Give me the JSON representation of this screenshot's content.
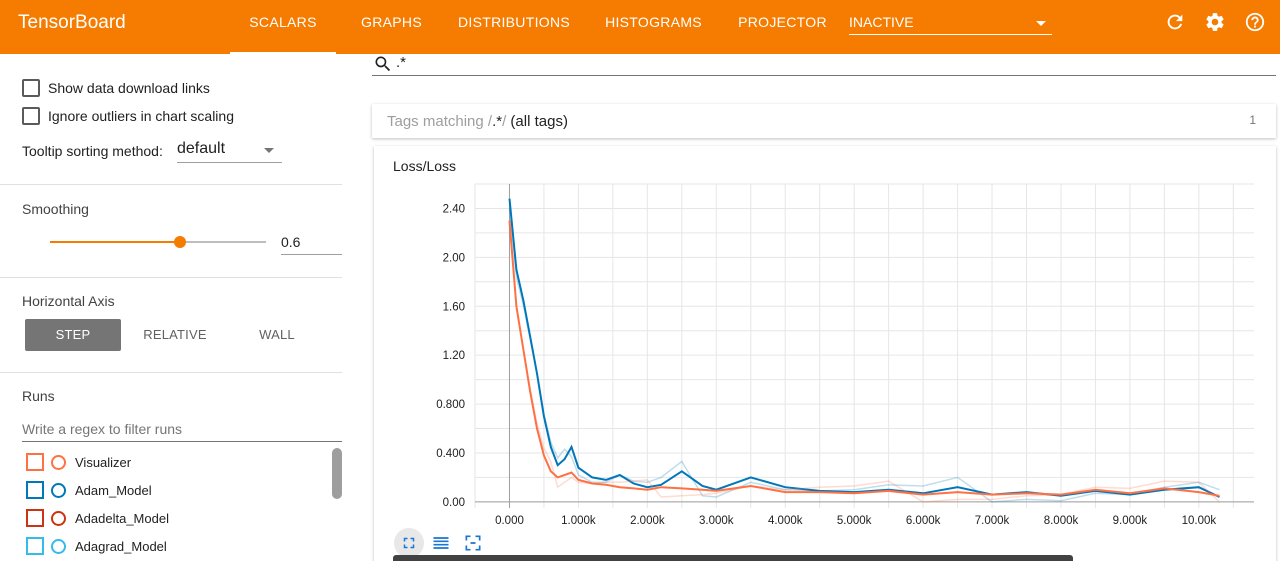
{
  "header": {
    "brand": "TensorBoard",
    "tabs": [
      {
        "label": "SCALARS",
        "active": true
      },
      {
        "label": "GRAPHS",
        "active": false
      },
      {
        "label": "DISTRIBUTIONS",
        "active": false
      },
      {
        "label": "HISTOGRAMS",
        "active": false
      },
      {
        "label": "PROJECTOR",
        "active": false
      }
    ],
    "inactive_select": "INACTIVE",
    "icons": [
      "refresh-icon",
      "gear-icon",
      "help-icon"
    ]
  },
  "sidebar": {
    "show_download_links": "Show data download links",
    "ignore_outliers": "Ignore outliers in chart scaling",
    "tooltip_label": "Tooltip sorting method:",
    "tooltip_value": "default",
    "smoothing_label": "Smoothing",
    "smoothing_value": "0.6",
    "smoothing_fraction": 0.6,
    "horizontal_axis_label": "Horizontal Axis",
    "axis_buttons": [
      {
        "label": "STEP",
        "active": true
      },
      {
        "label": "RELATIVE",
        "active": false
      },
      {
        "label": "WALL",
        "active": false
      }
    ],
    "runs_label": "Runs",
    "runs_filter_placeholder": "Write a regex to filter runs",
    "runs": [
      {
        "name": "Visualizer",
        "color": "#ff7043"
      },
      {
        "name": "Adam_Model",
        "color": "#0077bb"
      },
      {
        "name": "Adadelta_Model",
        "color": "#cc3311"
      },
      {
        "name": "Adagrad_Model",
        "color": "#33bbee"
      }
    ]
  },
  "main": {
    "search_text": ".*",
    "tags_matching_prefix": "Tags matching /",
    "tags_matching_regex": ".*",
    "tags_matching_suffix": "/",
    "tags_matching_all": "(all tags)",
    "tags_count": "1"
  },
  "chart_data": {
    "type": "line",
    "title": "Loss/Loss",
    "xlabel": "",
    "ylabel": "",
    "xlim": [
      -500,
      10800
    ],
    "ylim": [
      -0.05,
      2.6
    ],
    "x_ticks": [
      "0.000",
      "1.000k",
      "2.000k",
      "3.000k",
      "4.000k",
      "5.000k",
      "6.000k",
      "7.000k",
      "8.000k",
      "9.000k",
      "10.00k"
    ],
    "y_ticks": [
      "0.00",
      "0.400",
      "0.800",
      "1.20",
      "1.60",
      "2.00",
      "2.40"
    ],
    "grid": true,
    "series": [
      {
        "color": "#0077bb",
        "x": [
          0,
          100,
          200,
          300,
          400,
          500,
          600,
          700,
          800,
          900,
          1000,
          1200,
          1400,
          1600,
          1800,
          2000,
          2200,
          2500,
          2800,
          3000,
          3500,
          4000,
          4500,
          5000,
          5500,
          6000,
          6500,
          7000,
          7500,
          8000,
          8500,
          9000,
          9500,
          10000,
          10300
        ],
        "y": [
          2.48,
          1.9,
          1.65,
          1.35,
          1.05,
          0.7,
          0.45,
          0.3,
          0.35,
          0.45,
          0.28,
          0.2,
          0.18,
          0.22,
          0.15,
          0.12,
          0.14,
          0.25,
          0.13,
          0.1,
          0.2,
          0.12,
          0.09,
          0.08,
          0.1,
          0.07,
          0.12,
          0.06,
          0.08,
          0.05,
          0.09,
          0.06,
          0.1,
          0.12,
          0.04
        ]
      },
      {
        "color": "#ff7043",
        "x": [
          0,
          100,
          200,
          300,
          400,
          500,
          600,
          700,
          800,
          900,
          1000,
          1200,
          1400,
          1600,
          1800,
          2000,
          2200,
          2500,
          2800,
          3000,
          3500,
          4000,
          4500,
          5000,
          5500,
          6000,
          6500,
          7000,
          7500,
          8000,
          8500,
          9000,
          9500,
          10000,
          10300
        ],
        "y": [
          2.3,
          1.6,
          1.25,
          0.9,
          0.6,
          0.38,
          0.25,
          0.2,
          0.22,
          0.24,
          0.18,
          0.15,
          0.14,
          0.12,
          0.11,
          0.1,
          0.12,
          0.11,
          0.1,
          0.09,
          0.13,
          0.08,
          0.08,
          0.07,
          0.09,
          0.06,
          0.08,
          0.06,
          0.07,
          0.06,
          0.1,
          0.07,
          0.11,
          0.08,
          0.05
        ]
      }
    ]
  }
}
